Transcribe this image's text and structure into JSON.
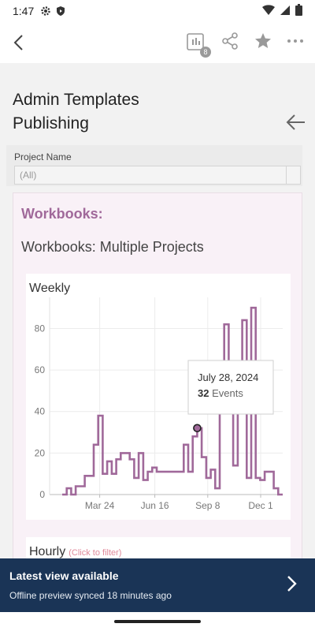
{
  "status_bar": {
    "time": "1:47",
    "icons_left": [
      "gear-icon",
      "shield-icon"
    ],
    "icons_right": [
      "wifi-icon",
      "signal-icon",
      "battery-icon"
    ]
  },
  "appbar": {
    "badge_count": "8",
    "icons": [
      "back-icon",
      "views-icon",
      "share-icon",
      "star-icon",
      "more-icon"
    ]
  },
  "page": {
    "title": "Admin Templates Publishing"
  },
  "filter": {
    "label": "Project Name",
    "value": "(All)"
  },
  "dashboard": {
    "section_title": "Workbooks:",
    "subtitle": "Workbooks: Multiple Projects"
  },
  "chart_data": {
    "type": "line",
    "title": "Weekly",
    "accent_color": "#a0699a",
    "ylim": [
      0,
      95
    ],
    "y_ticks": [
      0,
      20,
      40,
      60,
      80
    ],
    "x_tick_labels": [
      "Mar 24",
      "Jun 16",
      "Sep 8",
      "Dec 1"
    ],
    "series": [
      {
        "values": [
          0,
          3,
          0,
          4,
          4,
          9,
          9,
          24,
          38,
          10,
          16,
          10,
          17,
          20,
          20,
          17,
          8,
          20,
          7,
          11,
          13,
          11,
          11,
          11,
          11,
          11,
          11,
          24,
          11,
          28,
          32,
          18,
          8,
          12,
          3,
          40,
          82,
          40,
          14,
          49,
          84,
          8,
          90,
          8,
          7,
          11,
          11,
          3,
          0
        ]
      }
    ],
    "tooltip": {
      "date": "July 28, 2024",
      "count": "32",
      "unit": "Events"
    }
  },
  "hourly": {
    "title": "Hourly",
    "hint": "(Click to filter)"
  },
  "banner": {
    "title": "Latest view available",
    "subtitle": "Offline preview synced 18 minutes ago"
  }
}
